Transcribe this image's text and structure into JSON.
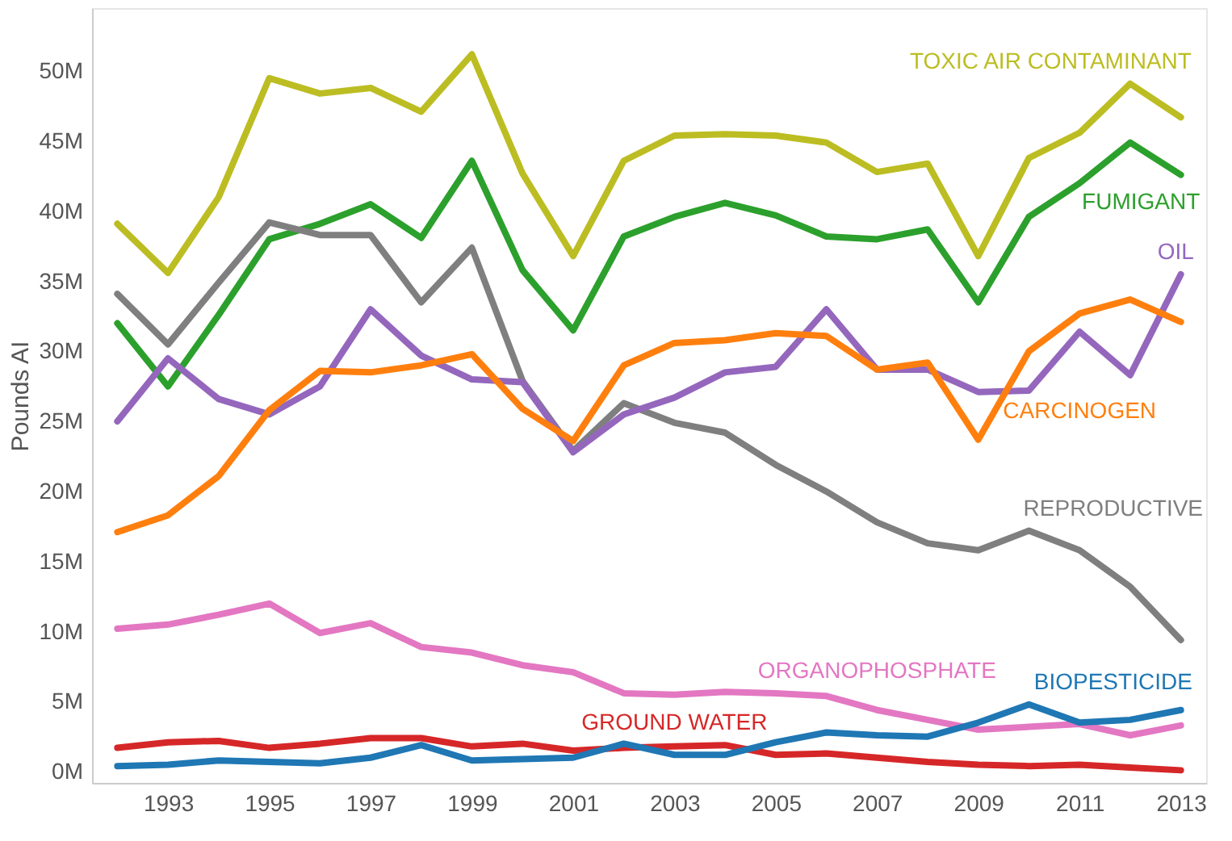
{
  "chart_data": {
    "type": "line",
    "ylabel": "Pounds AI",
    "x": [
      1992,
      1993,
      1994,
      1995,
      1996,
      1997,
      1998,
      1999,
      2000,
      2001,
      2002,
      2003,
      2004,
      2005,
      2006,
      2007,
      2008,
      2009,
      2010,
      2011,
      2012,
      2013
    ],
    "xlim": [
      1991.5,
      2013.5
    ],
    "xticks": [
      1993,
      1995,
      1997,
      1999,
      2001,
      2003,
      2005,
      2007,
      2009,
      2011,
      2013
    ],
    "ylim": [
      -0.8,
      54.5
    ],
    "yticks": [
      {
        "value": 0,
        "label": "0M"
      },
      {
        "value": 5,
        "label": "5M"
      },
      {
        "value": 10,
        "label": "10M"
      },
      {
        "value": 15,
        "label": "15M"
      },
      {
        "value": 20,
        "label": "20M"
      },
      {
        "value": 25,
        "label": "25M"
      },
      {
        "value": 30,
        "label": "30M"
      },
      {
        "value": 35,
        "label": "35M"
      },
      {
        "value": 40,
        "label": "40M"
      },
      {
        "value": 45,
        "label": "45M"
      },
      {
        "value": 50,
        "label": "50M"
      }
    ],
    "grid": false,
    "legend": false,
    "marker": "none",
    "line_style": "solid",
    "series": [
      {
        "name": "TOXIC AIR CONTAMINANT",
        "color": "#bcbd22",
        "values": [
          39.1,
          35.6,
          41,
          49.5,
          48.4,
          48.8,
          47.1,
          51.2,
          42.7,
          36.8,
          43.6,
          45.4,
          45.5,
          45.4,
          44.9,
          42.8,
          43.4,
          36.8,
          43.8,
          45.6,
          49.1,
          46.7
        ]
      },
      {
        "name": "FUMIGANT",
        "color": "#2ca02c",
        "values": [
          32,
          27.5,
          32.6,
          38,
          39.1,
          40.5,
          38.1,
          43.6,
          35.8,
          31.5,
          38.2,
          39.6,
          40.6,
          39.7,
          38.2,
          38,
          38.7,
          33.5,
          39.6,
          42,
          44.9,
          42.6
        ]
      },
      {
        "name": "REPRODUCTIVE",
        "color": "#7f7f7f",
        "values": [
          34.1,
          30.5,
          34.9,
          39.2,
          38.3,
          38.3,
          33.5,
          37.4,
          27.9,
          22.9,
          26.3,
          24.9,
          24.2,
          21.9,
          20,
          17.8,
          16.3,
          15.8,
          17.2,
          15.8,
          13.2,
          9.4
        ]
      },
      {
        "name": "OIL",
        "color": "#9467bd",
        "values": [
          25,
          29.5,
          26.6,
          25.5,
          27.5,
          33,
          29.7,
          28,
          27.8,
          22.8,
          25.5,
          26.7,
          28.5,
          28.9,
          33,
          28.7,
          28.7,
          27.1,
          27.2,
          31.4,
          28.3,
          35.5
        ]
      },
      {
        "name": "CARCINOGEN",
        "color": "#ff7f0e",
        "values": [
          17.1,
          18.3,
          21.1,
          25.8,
          28.6,
          28.5,
          29,
          29.8,
          25.9,
          23.6,
          29,
          30.6,
          30.8,
          31.3,
          31.1,
          28.7,
          29.2,
          23.7,
          30,
          32.7,
          33.7,
          32.1
        ]
      },
      {
        "name": "ORGANOPHOSPHATE",
        "color": "#e377c2",
        "values": [
          10.2,
          10.5,
          11.2,
          12,
          9.9,
          10.6,
          8.9,
          8.5,
          7.6,
          7.1,
          5.6,
          5.5,
          5.7,
          5.6,
          5.4,
          4.4,
          3.7,
          3,
          3.2,
          3.4,
          2.6,
          3.3
        ]
      },
      {
        "name": "GROUND WATER",
        "color": "#d62728",
        "values": [
          1.7,
          2.1,
          2.2,
          1.7,
          2,
          2.4,
          2.4,
          1.8,
          2,
          1.5,
          1.7,
          1.8,
          1.9,
          1.2,
          1.3,
          1,
          0.7,
          0.5,
          0.4,
          0.5,
          0.3,
          0.1
        ]
      },
      {
        "name": "BIOPESTICIDE",
        "color": "#1f77b4",
        "values": [
          0.4,
          0.5,
          0.8,
          0.7,
          0.6,
          1,
          1.9,
          0.8,
          0.9,
          1,
          2,
          1.2,
          1.2,
          2.1,
          2.8,
          2.6,
          2.5,
          3.5,
          4.8,
          3.5,
          3.7,
          4.4
        ]
      }
    ]
  }
}
